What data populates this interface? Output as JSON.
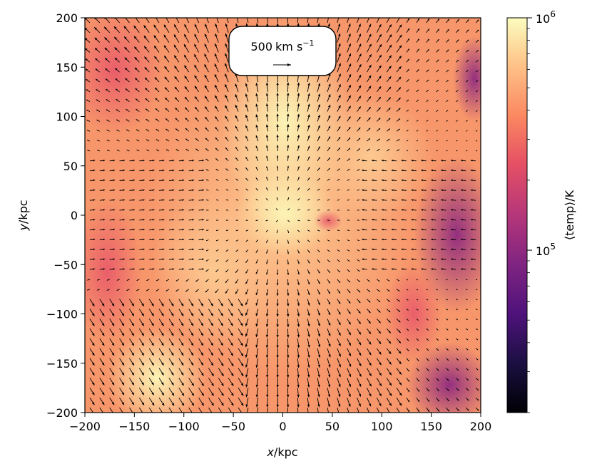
{
  "chart_data": {
    "type": "heatmap",
    "x_range": [
      -200,
      200
    ],
    "y_range": [
      -200,
      200
    ],
    "x_ticks": [
      -200,
      -150,
      -100,
      -50,
      0,
      50,
      100,
      150,
      200
    ],
    "y_ticks": [
      -200,
      -150,
      -100,
      -50,
      0,
      50,
      100,
      150,
      200
    ],
    "x_tick_labels": [
      "−200",
      "−150",
      "−100",
      "−50",
      "0",
      "50",
      "100",
      "150",
      "200"
    ],
    "y_tick_labels": [
      "−200",
      "−150",
      "−100",
      "−50",
      "0",
      "50",
      "100",
      "150",
      "200"
    ],
    "xlabel_var": "x",
    "xlabel_unit": "/kpc",
    "ylabel_var": "y",
    "ylabel_unit": "/kpc",
    "colorbar": {
      "label": "⟨temp⟩/K",
      "scale": "log",
      "range": [
        20000,
        1000000
      ],
      "colormap": "magma",
      "tick_base": "10",
      "ticks": [
        {
          "value": 1000000,
          "exponent": "6"
        },
        {
          "value": 100000,
          "exponent": "5"
        }
      ]
    },
    "quiver_key": {
      "value": "500",
      "unit": "km s",
      "unit_exponent": "−1"
    },
    "map_description_colors": {
      "hot": "#fcfdbf",
      "warm": "#fdd29a",
      "mid": "#f97c5d",
      "cool": "#b73779",
      "cold": "#51127c"
    }
  }
}
